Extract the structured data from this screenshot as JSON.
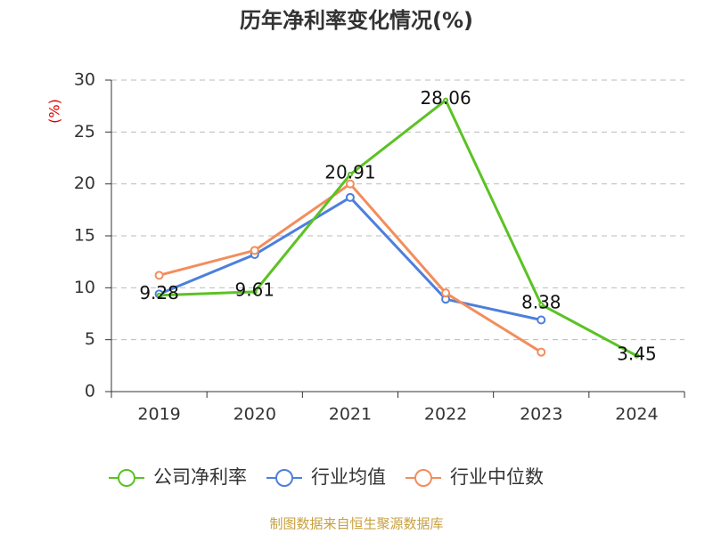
{
  "chart_data": {
    "type": "line",
    "title": "历年净利率变化情况(%)",
    "y_label": "(%)",
    "source": "制图数据来自恒生聚源数据库",
    "categories": [
      "2019",
      "2020",
      "2021",
      "2022",
      "2023",
      "2024"
    ],
    "series": [
      {
        "name": "公司净利率",
        "color": "#5bc224",
        "values": [
          9.28,
          9.61,
          20.91,
          28.06,
          8.38,
          3.45
        ],
        "labels": true
      },
      {
        "name": "行业均值",
        "color": "#4d7fdc",
        "values": [
          9.4,
          13.2,
          18.7,
          8.9,
          6.9,
          null
        ],
        "labels": false
      },
      {
        "name": "行业中位数",
        "color": "#f38d5c",
        "values": [
          11.2,
          13.6,
          20.0,
          9.5,
          3.8,
          null
        ],
        "labels": false
      }
    ],
    "ylim": [
      0,
      30
    ],
    "yticks": [
      0,
      5,
      10,
      15,
      20,
      25,
      30
    ],
    "grid": true
  }
}
